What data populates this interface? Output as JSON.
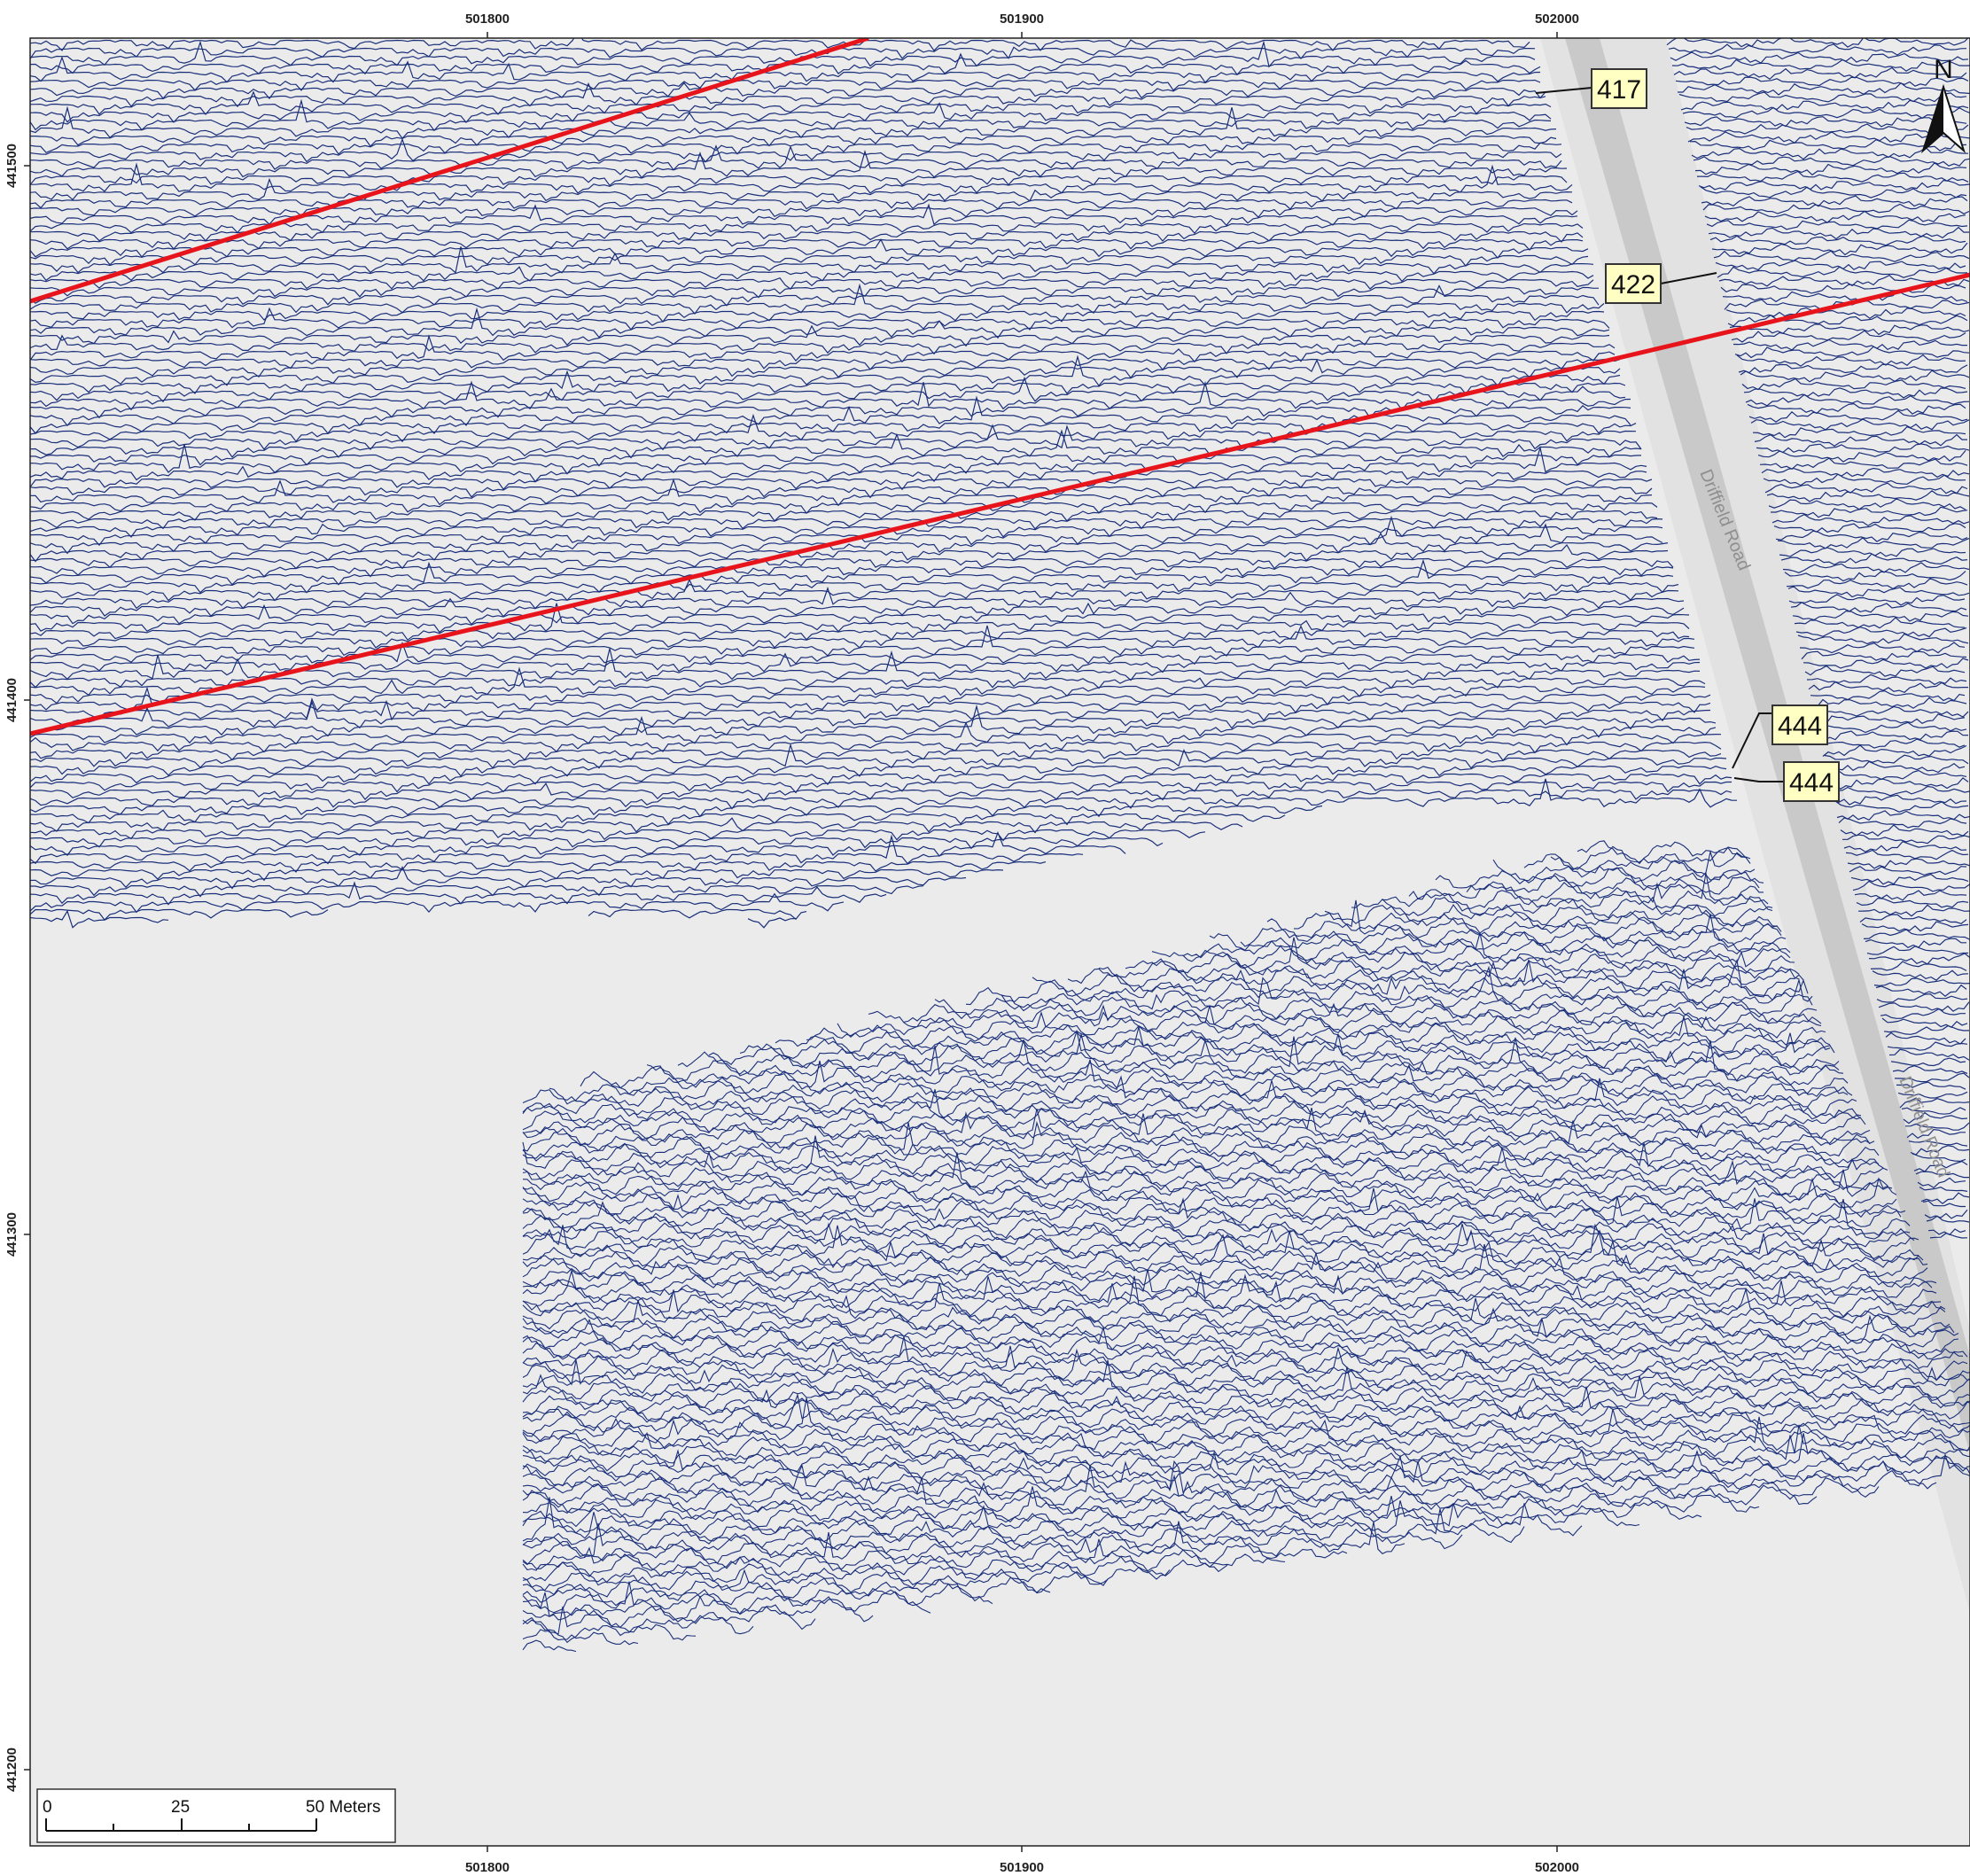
{
  "map": {
    "axes": {
      "top_ticks": [
        "501800",
        "501900",
        "502000"
      ],
      "bottom_ticks": [
        "501800",
        "501900",
        "502000"
      ],
      "left_ticks": [
        "441500",
        "441400",
        "441300",
        "441200"
      ]
    },
    "roads": [
      {
        "label": "Driffield Road"
      },
      {
        "label": "Driffield Road"
      }
    ],
    "callouts": [
      {
        "label": "417"
      },
      {
        "label": "422"
      },
      {
        "label": "444"
      },
      {
        "label": "444"
      }
    ],
    "scale_bar": {
      "labels": [
        "0",
        "25",
        "50 Meters"
      ]
    },
    "north_arrow": {
      "label": "N"
    },
    "colors": {
      "background": "#ebebeb",
      "traces": "#1a2f7a",
      "anomaly_lines": "#e8141c",
      "road": "#c9c9c9",
      "callout_fill": "#ffffc4"
    }
  }
}
